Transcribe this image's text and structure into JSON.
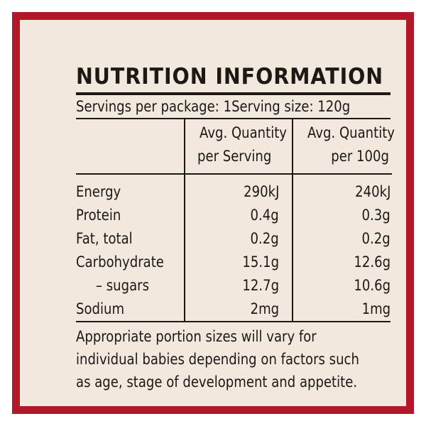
{
  "colors": {
    "border": "#b3182a",
    "background": "#f1e9de",
    "text": "#1f1714"
  },
  "title": "NUTRITION INFORMATION",
  "servings_per_package": "Servings per package: 1",
  "serving_size": "Serving size: 120g",
  "columns": {
    "per_serving_line1": "Avg. Quantity",
    "per_serving_line2": "per Serving",
    "per_100g_line1": "Avg. Quantity",
    "per_100g_line2": "per 100g"
  },
  "rows": [
    {
      "label": "Energy",
      "per_serving": "290kJ",
      "per_100g": "240kJ"
    },
    {
      "label": "Protein",
      "per_serving": "0.4g",
      "per_100g": "0.3g"
    },
    {
      "label": "Fat, total",
      "per_serving": "0.2g",
      "per_100g": "0.2g"
    },
    {
      "label": "Carbohydrate",
      "per_serving": "15.1g",
      "per_100g": "12.6g"
    },
    {
      "label": "– sugars",
      "per_serving": "12.7g",
      "per_100g": "10.6g"
    },
    {
      "label": "Sodium",
      "per_serving": "2mg",
      "per_100g": "1mg"
    }
  ],
  "footnote": {
    "line1": "Appropriate portion sizes will vary for",
    "line2": "individual babies depending on factors such",
    "line3": "as age, stage of development and appetite."
  }
}
